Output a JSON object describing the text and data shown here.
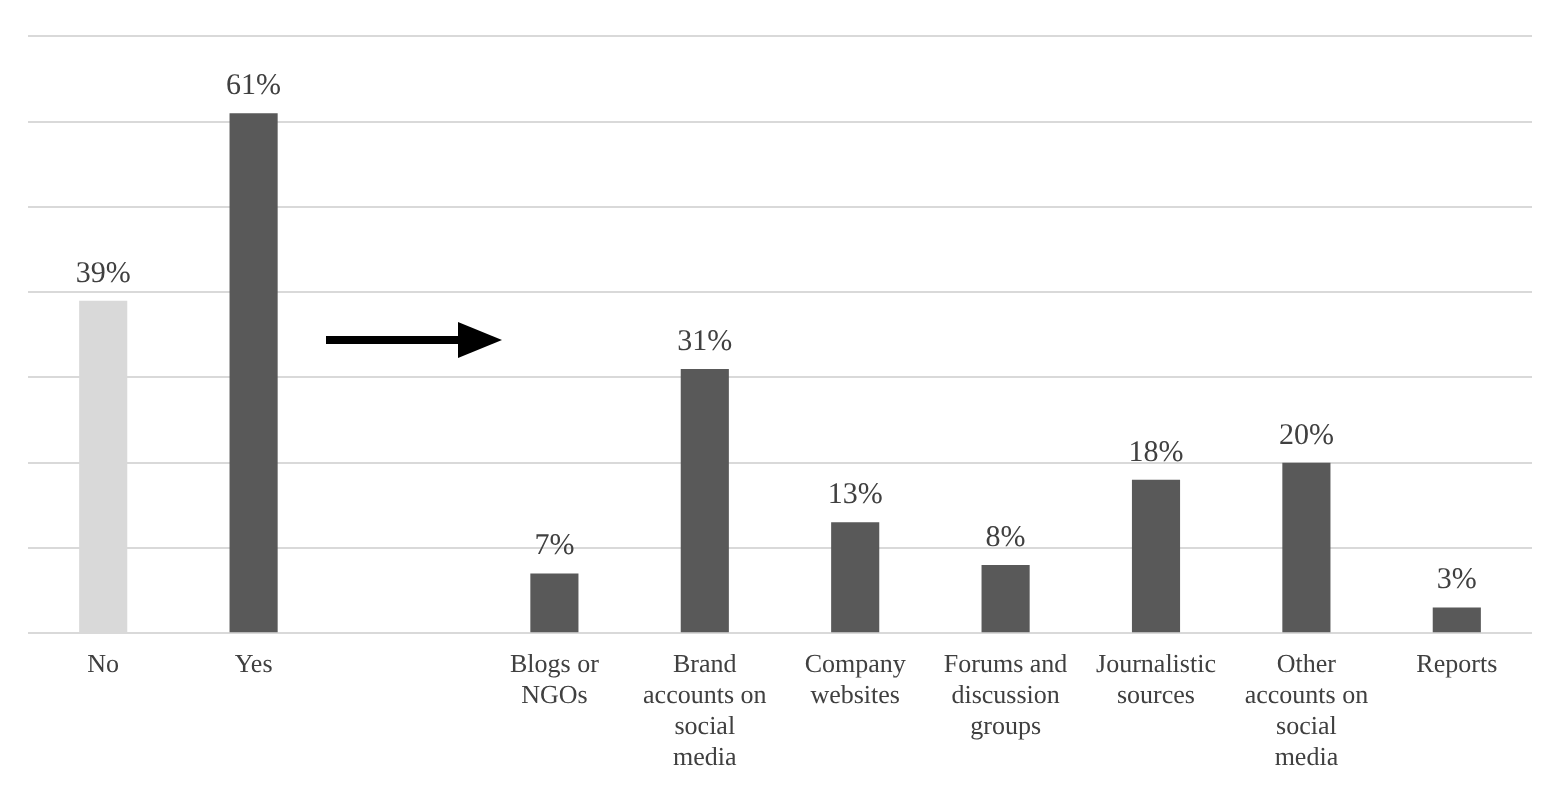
{
  "chart_data": {
    "type": "bar",
    "categories": [
      "No",
      "Yes",
      null,
      "Blogs or NGOs",
      "Brand accounts on social media",
      "Company websites",
      "Forums and discussion groups",
      "Journalistic sources",
      "Other accounts on social media",
      "Reports"
    ],
    "values": [
      39,
      61,
      null,
      7,
      31,
      13,
      8,
      18,
      20,
      3
    ],
    "value_labels": [
      "39%",
      "61%",
      null,
      "7%",
      "31%",
      "13%",
      "8%",
      "18%",
      "20%",
      "3%"
    ],
    "colors": [
      "#d9d9d9",
      "#595959",
      null,
      "#595959",
      "#595959",
      "#595959",
      "#595959",
      "#595959",
      "#595959",
      "#595959"
    ],
    "ylim": [
      0,
      70
    ],
    "yticks": [
      {
        "value": 0,
        "label": null
      },
      {
        "value": 10,
        "label": null
      },
      {
        "value": 20,
        "label": null
      },
      {
        "value": 30,
        "label": null
      },
      {
        "value": 40,
        "label": null
      },
      {
        "value": 50,
        "label": null
      },
      {
        "value": 60,
        "label": null
      },
      {
        "value": 70,
        "label": null
      }
    ],
    "grid": "y",
    "legend": false
  }
}
